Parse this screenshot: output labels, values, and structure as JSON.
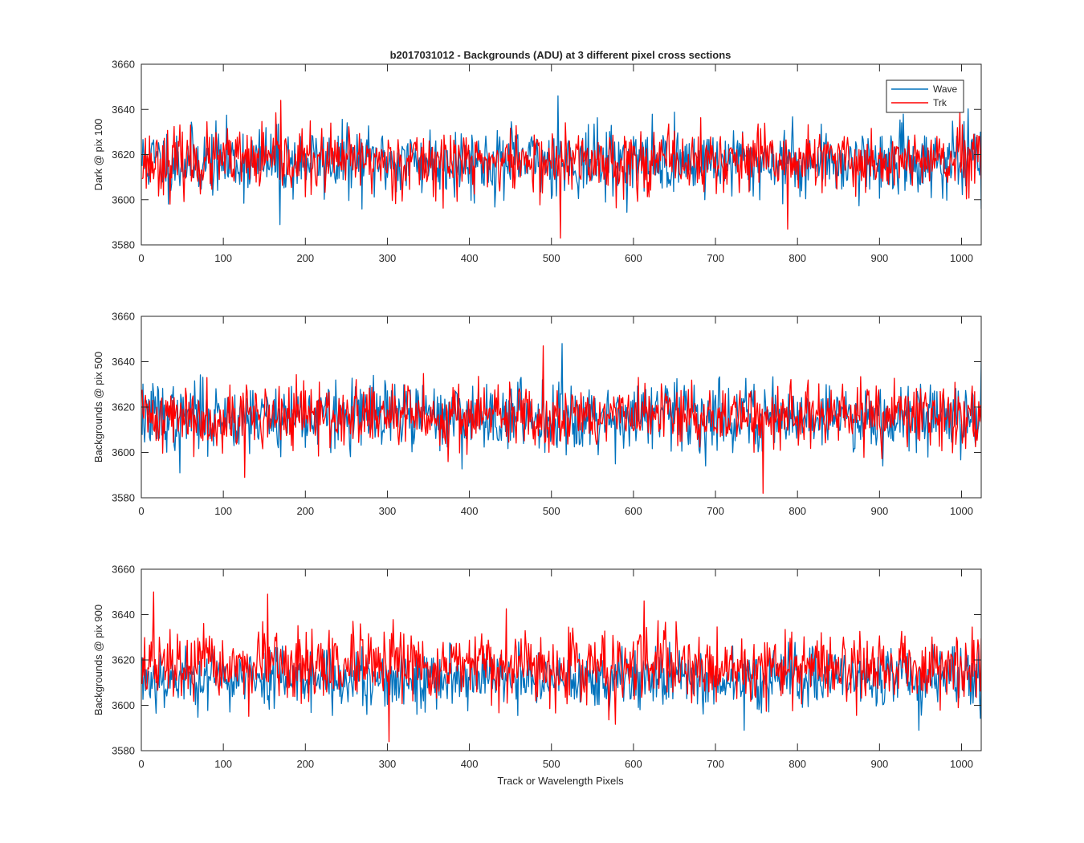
{
  "figure_title": "b2017031012 - Backgrounds (ADU) at 3 different pixel cross sections",
  "xlabel": "Track or Wavelength Pixels",
  "colors": {
    "wave": "#0072BD",
    "trk": "#FF0000",
    "axis": "#262626",
    "background": "#ffffff"
  },
  "legend": {
    "wave": "Wave",
    "trk": "Trk",
    "placement": "top-right of first panel"
  },
  "chart_data": [
    {
      "type": "line",
      "title": "b2017031012 - Backgrounds (ADU) at 3 different pixel cross sections",
      "ylabel": "Dark @ pix 100",
      "xlabel": "",
      "xlim": [
        0,
        1024
      ],
      "ylim": [
        3580,
        3660
      ],
      "xticks": [
        0,
        100,
        200,
        300,
        400,
        500,
        600,
        700,
        800,
        900,
        1000
      ],
      "yticks": [
        3580,
        3600,
        3620,
        3640,
        3660
      ],
      "x_range": [
        1,
        1024
      ],
      "legend": true,
      "series": [
        {
          "name": "Wave",
          "color": "#0072BD",
          "mean": 3617,
          "std": 7.5,
          "min": 3589,
          "max": 3646,
          "seed": 11,
          "extremes": [
            [
              169,
              3589
            ],
            [
              508,
              3646
            ],
            [
              1024,
              3596
            ]
          ]
        },
        {
          "name": "Trk",
          "color": "#FF0000",
          "mean": 3617,
          "std": 7,
          "min": 3583,
          "max": 3644,
          "seed": 23,
          "extremes": [
            [
              170,
              3644
            ],
            [
              511,
              3583
            ],
            [
              788,
              3587
            ]
          ]
        }
      ]
    },
    {
      "type": "line",
      "title": "",
      "ylabel": "Backgrounds @ pix 500",
      "xlabel": "",
      "xlim": [
        0,
        1024
      ],
      "ylim": [
        3580,
        3660
      ],
      "xticks": [
        0,
        100,
        200,
        300,
        400,
        500,
        600,
        700,
        800,
        900,
        1000
      ],
      "yticks": [
        3580,
        3600,
        3620,
        3640,
        3660
      ],
      "x_range": [
        1,
        1024
      ],
      "legend": false,
      "series": [
        {
          "name": "Wave",
          "color": "#0072BD",
          "mean": 3616,
          "std": 7.5,
          "min": 3590,
          "max": 3648,
          "seed": 37,
          "extremes": [
            [
              47,
              3591
            ],
            [
              513,
              3648
            ],
            [
              1024,
              3640
            ]
          ]
        },
        {
          "name": "Trk",
          "color": "#FF0000",
          "mean": 3616,
          "std": 7,
          "min": 3582,
          "max": 3647,
          "seed": 41,
          "extremes": [
            [
              490,
              3647
            ],
            [
              758,
              3582
            ],
            [
              126,
              3589
            ]
          ]
        }
      ]
    },
    {
      "type": "line",
      "title": "",
      "ylabel": "Backgrounds @ pix 900",
      "xlabel": "Track or Wavelength Pixels",
      "xlim": [
        0,
        1024
      ],
      "ylim": [
        3580,
        3660
      ],
      "xticks": [
        0,
        100,
        200,
        300,
        400,
        500,
        600,
        700,
        800,
        900,
        1000
      ],
      "yticks": [
        3580,
        3600,
        3620,
        3640,
        3660
      ],
      "x_range": [
        1,
        1024
      ],
      "legend": false,
      "series": [
        {
          "name": "Wave",
          "color": "#0072BD",
          "mean": 3612,
          "std": 6.5,
          "min": 3589,
          "max": 3628,
          "seed": 53,
          "extremes": [
            [
              735,
              3589
            ],
            [
              948,
              3589
            ]
          ]
        },
        {
          "name": "Trk",
          "color": "#FF0000",
          "mean": 3617,
          "std": 7.5,
          "min": 3584,
          "max": 3650,
          "seed": 67,
          "extremes": [
            [
              15,
              3650
            ],
            [
              154,
              3649
            ],
            [
              302,
              3584
            ],
            [
              613,
              3646
            ]
          ]
        }
      ]
    }
  ]
}
